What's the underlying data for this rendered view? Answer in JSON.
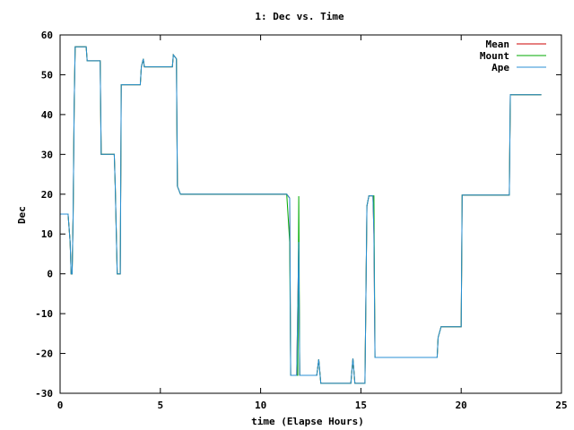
{
  "chart_data": {
    "type": "line",
    "title": "1: Dec vs. Time",
    "xlabel": "time (Elapse Hours)",
    "ylabel": "Dec",
    "xlim": [
      0,
      25
    ],
    "ylim": [
      -30,
      60
    ],
    "xticks": [
      0,
      5,
      10,
      15,
      20,
      25
    ],
    "yticks": [
      -30,
      -20,
      -10,
      0,
      10,
      20,
      30,
      40,
      50,
      60
    ],
    "legend_position": "top-right",
    "series": [
      {
        "name": "Mean",
        "color": "#cc0000",
        "points": [
          [
            0,
            15
          ],
          [
            0.4,
            15
          ],
          [
            0.5,
            8
          ],
          [
            0.55,
            0
          ],
          [
            0.6,
            0
          ],
          [
            0.65,
            14
          ],
          [
            0.7,
            42
          ],
          [
            0.75,
            57
          ],
          [
            1.3,
            57
          ],
          [
            1.35,
            53.5
          ],
          [
            2.0,
            53.5
          ],
          [
            2.05,
            30
          ],
          [
            2.7,
            30
          ],
          [
            2.75,
            22
          ],
          [
            2.85,
            0
          ],
          [
            3.0,
            0
          ],
          [
            3.05,
            47.5
          ],
          [
            4.0,
            47.5
          ],
          [
            4.05,
            52
          ],
          [
            4.15,
            54
          ],
          [
            4.2,
            52
          ],
          [
            5.6,
            52
          ],
          [
            5.65,
            55
          ],
          [
            5.8,
            54
          ],
          [
            5.85,
            22
          ],
          [
            6.0,
            20
          ],
          [
            11.3,
            20
          ],
          [
            11.45,
            19
          ],
          [
            11.5,
            -25.5
          ],
          [
            11.8,
            -25.5
          ],
          [
            11.9,
            8
          ],
          [
            11.95,
            -25.5
          ],
          [
            12.8,
            -25.5
          ],
          [
            12.9,
            -21.5
          ],
          [
            13.0,
            -27.5
          ],
          [
            14.5,
            -27.5
          ],
          [
            14.6,
            -21.3
          ],
          [
            14.7,
            -27.5
          ],
          [
            15.2,
            -27.5
          ],
          [
            15.3,
            17
          ],
          [
            15.4,
            19.6
          ],
          [
            15.6,
            19.6
          ],
          [
            15.65,
            10
          ],
          [
            15.7,
            -21
          ],
          [
            18.8,
            -21
          ],
          [
            18.85,
            -16
          ],
          [
            19.0,
            -13.3
          ],
          [
            20.0,
            -13.3
          ],
          [
            20.05,
            19.8
          ],
          [
            22.4,
            19.8
          ],
          [
            22.45,
            45
          ],
          [
            24.0,
            45
          ]
        ]
      },
      {
        "name": "Mount",
        "color": "#00aa00",
        "points": [
          [
            0,
            15
          ],
          [
            0.4,
            15
          ],
          [
            0.5,
            8
          ],
          [
            0.55,
            0
          ],
          [
            0.6,
            0
          ],
          [
            0.65,
            14
          ],
          [
            0.7,
            42
          ],
          [
            0.75,
            57
          ],
          [
            1.3,
            57
          ],
          [
            1.35,
            53.5
          ],
          [
            2.0,
            53.5
          ],
          [
            2.05,
            30
          ],
          [
            2.7,
            30
          ],
          [
            2.75,
            22
          ],
          [
            2.85,
            0
          ],
          [
            3.0,
            0
          ],
          [
            3.05,
            47.5
          ],
          [
            4.0,
            47.5
          ],
          [
            4.05,
            52
          ],
          [
            4.15,
            54
          ],
          [
            4.2,
            52
          ],
          [
            5.6,
            52
          ],
          [
            5.65,
            55
          ],
          [
            5.8,
            54
          ],
          [
            5.85,
            22
          ],
          [
            6.0,
            20
          ],
          [
            11.3,
            20
          ],
          [
            11.45,
            8
          ],
          [
            11.5,
            -25.5
          ],
          [
            11.85,
            -25.5
          ],
          [
            11.9,
            19.5
          ],
          [
            11.95,
            -25.5
          ],
          [
            12.8,
            -25.5
          ],
          [
            12.9,
            -21.5
          ],
          [
            13.0,
            -27.5
          ],
          [
            14.5,
            -27.5
          ],
          [
            14.6,
            -21.3
          ],
          [
            14.7,
            -27.5
          ],
          [
            15.2,
            -27.5
          ],
          [
            15.3,
            17
          ],
          [
            15.4,
            19.6
          ],
          [
            15.65,
            19.6
          ],
          [
            15.7,
            -21
          ],
          [
            18.8,
            -21
          ],
          [
            18.85,
            -16
          ],
          [
            19.0,
            -13.3
          ],
          [
            20.0,
            -13.3
          ],
          [
            20.05,
            19.8
          ],
          [
            22.4,
            19.8
          ],
          [
            22.45,
            45
          ],
          [
            24.0,
            45
          ]
        ]
      },
      {
        "name": "Ape",
        "color": "#2a8fd6",
        "points": [
          [
            0,
            15
          ],
          [
            0.4,
            15
          ],
          [
            0.5,
            8
          ],
          [
            0.55,
            0
          ],
          [
            0.6,
            0
          ],
          [
            0.65,
            14
          ],
          [
            0.7,
            42
          ],
          [
            0.75,
            57
          ],
          [
            1.3,
            57
          ],
          [
            1.35,
            53.5
          ],
          [
            2.0,
            53.5
          ],
          [
            2.05,
            30
          ],
          [
            2.7,
            30
          ],
          [
            2.75,
            22
          ],
          [
            2.85,
            0
          ],
          [
            3.0,
            0
          ],
          [
            3.05,
            47.5
          ],
          [
            4.0,
            47.5
          ],
          [
            4.05,
            52
          ],
          [
            4.15,
            54
          ],
          [
            4.2,
            52
          ],
          [
            5.6,
            52
          ],
          [
            5.65,
            55
          ],
          [
            5.8,
            54
          ],
          [
            5.85,
            22
          ],
          [
            6.0,
            20
          ],
          [
            11.3,
            20
          ],
          [
            11.45,
            19
          ],
          [
            11.5,
            -25.5
          ],
          [
            11.8,
            -25.5
          ],
          [
            11.9,
            8
          ],
          [
            11.95,
            -25.5
          ],
          [
            12.8,
            -25.5
          ],
          [
            12.9,
            -21.5
          ],
          [
            13.0,
            -27.5
          ],
          [
            14.5,
            -27.5
          ],
          [
            14.6,
            -21.3
          ],
          [
            14.7,
            -27.5
          ],
          [
            15.2,
            -27.5
          ],
          [
            15.3,
            17
          ],
          [
            15.4,
            19.6
          ],
          [
            15.6,
            19.6
          ],
          [
            15.65,
            10
          ],
          [
            15.7,
            -21
          ],
          [
            18.8,
            -21
          ],
          [
            18.85,
            -16
          ],
          [
            19.0,
            -13.3
          ],
          [
            20.0,
            -13.3
          ],
          [
            20.05,
            19.8
          ],
          [
            22.4,
            19.8
          ],
          [
            22.45,
            45
          ],
          [
            24.0,
            45
          ]
        ]
      }
    ]
  }
}
